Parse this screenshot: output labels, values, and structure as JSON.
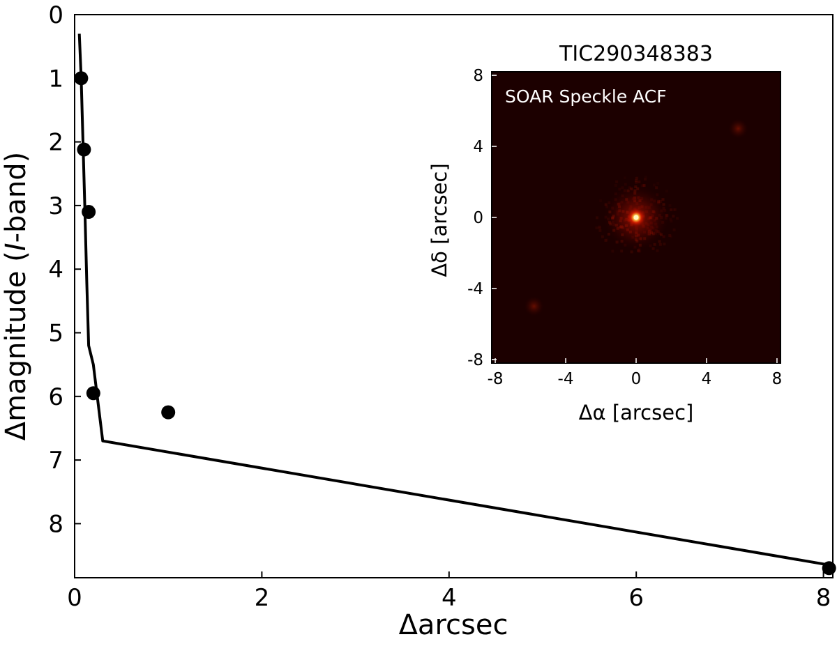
{
  "chart_data": [
    {
      "type": "scatter",
      "xlabel": "Δarcsec",
      "ylabel_prefix": "Δmagnitude (",
      "ylabel_italic": "I",
      "ylabel_suffix": "-band)",
      "xlim": [
        0,
        8.1
      ],
      "ylim": [
        8.85,
        0
      ],
      "y_inverted": true,
      "xticks": [
        0,
        2,
        4,
        6,
        8
      ],
      "yticks": [
        0,
        1,
        2,
        3,
        4,
        5,
        6,
        7,
        8
      ],
      "series": [
        {
          "kind": "line",
          "x": [
            0.05,
            0.07,
            0.09,
            0.11,
            0.13,
            0.15,
            0.2,
            0.3,
            8.06
          ],
          "y": [
            0.3,
            1.0,
            2.05,
            3.1,
            4.2,
            5.2,
            5.5,
            6.7,
            8.65
          ]
        },
        {
          "kind": "points",
          "x": [
            0.07,
            0.1,
            0.15,
            0.2,
            1.0,
            8.06
          ],
          "y": [
            1.0,
            2.12,
            3.1,
            5.95,
            6.25,
            8.7
          ]
        }
      ]
    },
    {
      "type": "heatmap",
      "title": "TIC290348383",
      "annotation": "SOAR Speckle ACF",
      "xlabel": "Δα [arcsec]",
      "ylabel": "Δδ [arcsec]",
      "xlim": [
        -8.2,
        8.2
      ],
      "ylim": [
        -8.2,
        8.2
      ],
      "xticks": [
        -8,
        -4,
        0,
        4,
        8
      ],
      "yticks": [
        -8,
        -4,
        0,
        4,
        8
      ],
      "background_color": "#1c0000",
      "peak_color": "#fff6c0",
      "halo_color": "#ff3a00",
      "blobs": [
        {
          "x": 0,
          "y": 0,
          "strength": 1.0
        },
        {
          "x": 5.8,
          "y": 5.0,
          "strength": 0.15
        },
        {
          "x": -5.8,
          "y": -5.0,
          "strength": 0.15
        }
      ]
    }
  ]
}
